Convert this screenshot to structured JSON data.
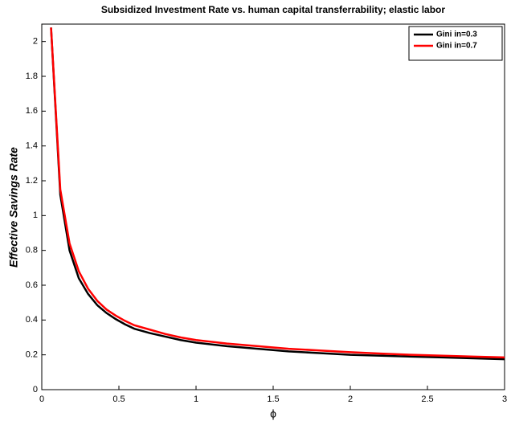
{
  "chart_data": {
    "type": "line",
    "title": "Subsidized Investment Rate vs. human capital transferrability; elastic labor",
    "x_label": "ϕ",
    "y_label": "Effective Savings Rate",
    "x": [
      0.06,
      0.12,
      0.18,
      0.24,
      0.3,
      0.36,
      0.42,
      0.48,
      0.54,
      0.6,
      0.7,
      0.8,
      0.9,
      1.0,
      1.2,
      1.4,
      1.6,
      1.8,
      2.0,
      2.2,
      2.4,
      2.6,
      2.8,
      3.0
    ],
    "series": [
      {
        "name": "Gini in=0.3",
        "color": "#000000",
        "values": [
          2.08,
          1.12,
          0.8,
          0.64,
          0.55,
          0.485,
          0.44,
          0.405,
          0.375,
          0.35,
          0.325,
          0.305,
          0.285,
          0.27,
          0.25,
          0.235,
          0.22,
          0.21,
          0.2,
          0.195,
          0.19,
          0.185,
          0.18,
          0.175
        ]
      },
      {
        "name": "Gini in=0.7",
        "color": "#ff0000",
        "values": [
          2.08,
          1.15,
          0.84,
          0.68,
          0.58,
          0.51,
          0.46,
          0.425,
          0.395,
          0.37,
          0.345,
          0.32,
          0.3,
          0.285,
          0.265,
          0.25,
          0.235,
          0.225,
          0.215,
          0.207,
          0.2,
          0.195,
          0.19,
          0.185
        ]
      }
    ],
    "xlim": [
      0,
      3
    ],
    "xticks": [
      0,
      0.5,
      1,
      1.5,
      2,
      2.5,
      3
    ],
    "ylim": [
      0,
      2.1
    ],
    "yticks": [
      0,
      0.2,
      0.4,
      0.6,
      0.8,
      1,
      1.2,
      1.4,
      1.6,
      1.8,
      2
    ],
    "grid": false,
    "legend": "top-right"
  }
}
